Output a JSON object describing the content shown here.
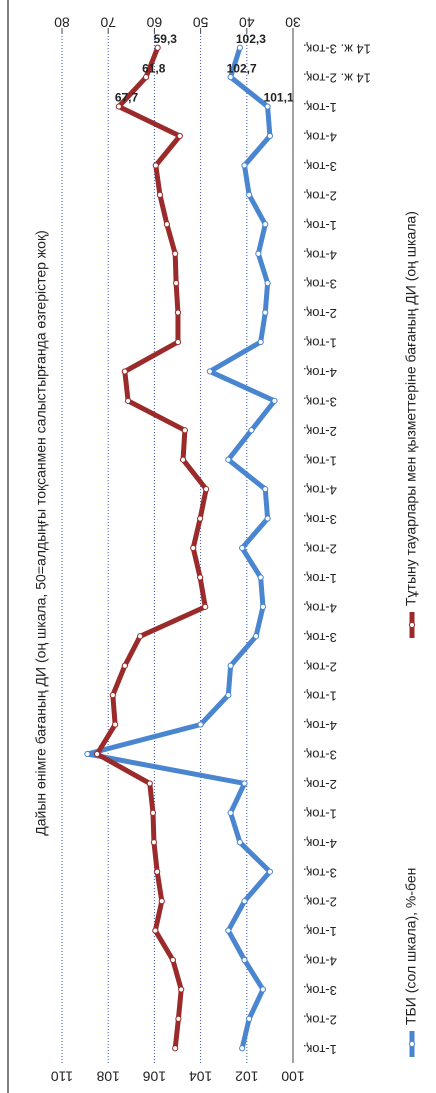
{
  "chart_data": {
    "type": "line",
    "title": "Дайын өнімге бағаның ДИ (оң шкала, 50=алдыңғы тоқсанмен салыстырғанда өзгерістер жоқ)",
    "categories": [
      "1-тоқ.",
      "2-тоқ.",
      "3-тоқ.",
      "4-тоқ.",
      "1-тоқ.",
      "2-тоқ.",
      "3-тоқ.",
      "4-тоқ.",
      "1-тоқ.",
      "2-тоқ.",
      "3-тоқ.",
      "4-тоқ.",
      "1-тоқ.",
      "2-тоқ.",
      "3-тоқ.",
      "4-тоқ.",
      "1-тоқ.",
      "2-тоқ.",
      "3-тоқ.",
      "4-тоқ.",
      "1-тоқ.",
      "2-тоқ.",
      "3-тоқ.",
      "4-тоқ.",
      "1-тоқ.",
      "2-тоқ.",
      "3-тоқ.",
      "4-тоқ.",
      "1-тоқ.",
      "2-тоқ.",
      "3-тоқ.",
      "4-тоқ.",
      "1-тоқ.",
      "14 ж. 2-тоқ.",
      "14 ж. 3-тоқ."
    ],
    "series": [
      {
        "name": "ТБИ (сол шкала), %-бен",
        "color": "#4a86d0",
        "axis": "y",
        "values": [
          102.2,
          101.9,
          101.3,
          102.1,
          102.8,
          102.1,
          101.0,
          102.3,
          102.7,
          102.1,
          108.9,
          104.0,
          102.8,
          102.7,
          101.6,
          101.3,
          101.4,
          102.2,
          101.1,
          101.2,
          102.8,
          101.8,
          100.8,
          103.6,
          101.4,
          101.2,
          101.1,
          101.5,
          101.2,
          101.9,
          102.1,
          101.0,
          101.1,
          102.7,
          102.3
        ],
        "value_labels": [
          null,
          null,
          null,
          null,
          null,
          null,
          null,
          null,
          null,
          null,
          null,
          null,
          null,
          null,
          null,
          null,
          null,
          null,
          null,
          null,
          null,
          null,
          null,
          null,
          null,
          null,
          null,
          null,
          null,
          null,
          null,
          null,
          "101,1",
          "102,7",
          "102,3"
        ]
      },
      {
        "name": "Тұтыну тауарлары мен қызметтеріне бағаның ДИ (оң шкала)",
        "color": "#9b2a2a",
        "axis": "y2",
        "values": [
          55.5,
          54.8,
          54.2,
          56.0,
          59.8,
          58.4,
          59.4,
          60.1,
          60.3,
          61.0,
          72.4,
          68.5,
          69.0,
          66.4,
          63.1,
          49.0,
          50.1,
          51.6,
          50.1,
          48.8,
          53.8,
          53.4,
          65.7,
          66.4,
          54.9,
          54.9,
          55.3,
          55.5,
          57.3,
          58.8,
          59.7,
          54.5,
          67.7,
          61.8,
          59.3
        ],
        "value_labels": [
          null,
          null,
          null,
          null,
          null,
          null,
          null,
          null,
          null,
          null,
          null,
          null,
          null,
          null,
          null,
          null,
          null,
          null,
          null,
          null,
          null,
          null,
          null,
          null,
          null,
          null,
          null,
          null,
          null,
          null,
          null,
          null,
          "67,7",
          "61,8",
          "59,3"
        ]
      }
    ],
    "ylim": [
      100,
      110
    ],
    "yticks": [
      100,
      102,
      104,
      106,
      108,
      110
    ],
    "y2lim": [
      30,
      80
    ],
    "y2ticks": [
      30,
      40,
      50,
      60,
      70,
      80
    ],
    "grid": true
  }
}
